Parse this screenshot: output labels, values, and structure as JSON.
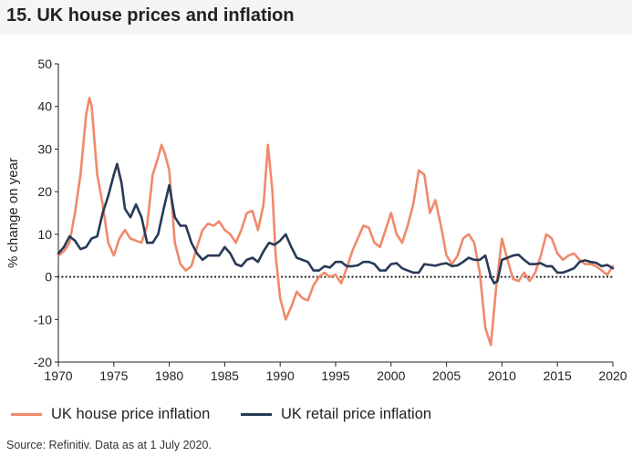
{
  "page": {
    "title": "15. UK house prices and inflation"
  },
  "legend": {
    "house": "UK house price inflation",
    "retail": "UK retail price inflation"
  },
  "source": "Source: Refinitiv. Data as at 1 July 2020.",
  "colors": {
    "house": "#f0896b",
    "retail": "#273a56",
    "zero": "#222222",
    "axis": "#222222"
  },
  "chart_data": {
    "type": "line",
    "title": "15. UK house prices and inflation",
    "xlabel": "",
    "ylabel": "% change on year",
    "xlim": [
      1970,
      2020
    ],
    "ylim": [
      -20,
      50
    ],
    "xticks": [
      1970,
      1975,
      1980,
      1985,
      1990,
      1995,
      2000,
      2005,
      2010,
      2015,
      2020
    ],
    "yticks": [
      -20,
      -10,
      0,
      10,
      20,
      30,
      40,
      50
    ],
    "grid": false,
    "zero_line": "dotted",
    "series": [
      {
        "name": "UK house price inflation",
        "points": [
          [
            1970.0,
            5
          ],
          [
            1970.5,
            6
          ],
          [
            1971.0,
            8
          ],
          [
            1971.5,
            15
          ],
          [
            1972.0,
            24
          ],
          [
            1972.5,
            38
          ],
          [
            1972.8,
            42
          ],
          [
            1973.0,
            40
          ],
          [
            1973.5,
            24
          ],
          [
            1974.0,
            17
          ],
          [
            1974.5,
            8
          ],
          [
            1975.0,
            5
          ],
          [
            1975.5,
            9
          ],
          [
            1976.0,
            11
          ],
          [
            1976.5,
            9
          ],
          [
            1977.0,
            8.5
          ],
          [
            1977.5,
            8
          ],
          [
            1978.0,
            12
          ],
          [
            1978.5,
            24
          ],
          [
            1979.0,
            28
          ],
          [
            1979.3,
            31
          ],
          [
            1979.6,
            29
          ],
          [
            1980.0,
            25
          ],
          [
            1980.5,
            8
          ],
          [
            1981.0,
            3
          ],
          [
            1981.5,
            1.5
          ],
          [
            1982.0,
            2.5
          ],
          [
            1982.5,
            7
          ],
          [
            1983.0,
            11
          ],
          [
            1983.5,
            12.5
          ],
          [
            1984.0,
            12
          ],
          [
            1984.5,
            13
          ],
          [
            1985.0,
            11
          ],
          [
            1985.5,
            10
          ],
          [
            1986.0,
            8
          ],
          [
            1986.5,
            11
          ],
          [
            1987.0,
            15
          ],
          [
            1987.5,
            15.5
          ],
          [
            1988.0,
            11
          ],
          [
            1988.5,
            17
          ],
          [
            1988.9,
            31
          ],
          [
            1989.3,
            20
          ],
          [
            1989.6,
            5
          ],
          [
            1990.0,
            -5
          ],
          [
            1990.5,
            -10
          ],
          [
            1991.0,
            -7
          ],
          [
            1991.5,
            -3.5
          ],
          [
            1992.0,
            -5
          ],
          [
            1992.5,
            -5.5
          ],
          [
            1993.0,
            -2
          ],
          [
            1993.5,
            0
          ],
          [
            1994.0,
            1
          ],
          [
            1994.5,
            0
          ],
          [
            1995.0,
            0.5
          ],
          [
            1995.5,
            -1.5
          ],
          [
            1996.0,
            2
          ],
          [
            1996.5,
            6
          ],
          [
            1997.0,
            9
          ],
          [
            1997.5,
            12
          ],
          [
            1998.0,
            11.5
          ],
          [
            1998.5,
            8
          ],
          [
            1999.0,
            7
          ],
          [
            1999.5,
            11
          ],
          [
            2000.0,
            15
          ],
          [
            2000.5,
            10
          ],
          [
            2001.0,
            8
          ],
          [
            2001.5,
            12
          ],
          [
            2002.0,
            17
          ],
          [
            2002.5,
            25
          ],
          [
            2003.0,
            24
          ],
          [
            2003.5,
            15
          ],
          [
            2004.0,
            18
          ],
          [
            2004.5,
            12
          ],
          [
            2005.0,
            5
          ],
          [
            2005.5,
            3
          ],
          [
            2006.0,
            5
          ],
          [
            2006.5,
            9
          ],
          [
            2007.0,
            10
          ],
          [
            2007.5,
            8
          ],
          [
            2008.0,
            1
          ],
          [
            2008.5,
            -12
          ],
          [
            2009.0,
            -16
          ],
          [
            2009.5,
            -2
          ],
          [
            2010.0,
            9
          ],
          [
            2010.5,
            4
          ],
          [
            2011.0,
            -0.5
          ],
          [
            2011.5,
            -1
          ],
          [
            2012.0,
            1
          ],
          [
            2012.5,
            -1
          ],
          [
            2013.0,
            1
          ],
          [
            2013.5,
            5
          ],
          [
            2014.0,
            10
          ],
          [
            2014.5,
            9
          ],
          [
            2015.0,
            5.5
          ],
          [
            2015.5,
            4
          ],
          [
            2016.0,
            5
          ],
          [
            2016.5,
            5.5
          ],
          [
            2017.0,
            4
          ],
          [
            2017.5,
            3
          ],
          [
            2018.0,
            3
          ],
          [
            2018.5,
            2.5
          ],
          [
            2019.0,
            1.5
          ],
          [
            2019.5,
            0.5
          ],
          [
            2020.0,
            2.5
          ]
        ]
      },
      {
        "name": "UK retail price inflation",
        "points": [
          [
            1970.0,
            5.5
          ],
          [
            1970.5,
            7
          ],
          [
            1971.0,
            9.5
          ],
          [
            1971.5,
            8.5
          ],
          [
            1972.0,
            6.5
          ],
          [
            1972.5,
            7
          ],
          [
            1973.0,
            9
          ],
          [
            1973.5,
            9.5
          ],
          [
            1974.0,
            15
          ],
          [
            1974.5,
            19
          ],
          [
            1975.0,
            24
          ],
          [
            1975.3,
            26.5
          ],
          [
            1975.7,
            22
          ],
          [
            1976.0,
            16
          ],
          [
            1976.5,
            14
          ],
          [
            1977.0,
            17
          ],
          [
            1977.5,
            14
          ],
          [
            1978.0,
            8
          ],
          [
            1978.5,
            8
          ],
          [
            1979.0,
            10
          ],
          [
            1979.5,
            16
          ],
          [
            1980.0,
            21.5
          ],
          [
            1980.5,
            14
          ],
          [
            1981.0,
            12
          ],
          [
            1981.5,
            12
          ],
          [
            1982.0,
            8
          ],
          [
            1982.5,
            5.5
          ],
          [
            1983.0,
            4
          ],
          [
            1983.5,
            5
          ],
          [
            1984.0,
            5
          ],
          [
            1984.5,
            5
          ],
          [
            1985.0,
            7
          ],
          [
            1985.5,
            5.5
          ],
          [
            1986.0,
            3
          ],
          [
            1986.5,
            2.5
          ],
          [
            1987.0,
            4
          ],
          [
            1987.5,
            4.5
          ],
          [
            1988.0,
            3.5
          ],
          [
            1988.5,
            6
          ],
          [
            1989.0,
            8
          ],
          [
            1989.5,
            7.5
          ],
          [
            1990.0,
            8.5
          ],
          [
            1990.5,
            10
          ],
          [
            1991.0,
            7
          ],
          [
            1991.5,
            4.5
          ],
          [
            1992.0,
            4
          ],
          [
            1992.5,
            3.5
          ],
          [
            1993.0,
            1.5
          ],
          [
            1993.5,
            1.5
          ],
          [
            1994.0,
            2.5
          ],
          [
            1994.5,
            2.2
          ],
          [
            1995.0,
            3.5
          ],
          [
            1995.5,
            3.5
          ],
          [
            1996.0,
            2.5
          ],
          [
            1996.5,
            2.5
          ],
          [
            1997.0,
            2.7
          ],
          [
            1997.5,
            3.5
          ],
          [
            1998.0,
            3.5
          ],
          [
            1998.5,
            3
          ],
          [
            1999.0,
            1.5
          ],
          [
            1999.5,
            1.5
          ],
          [
            2000.0,
            3
          ],
          [
            2000.5,
            3.2
          ],
          [
            2001.0,
            2
          ],
          [
            2001.5,
            1.5
          ],
          [
            2002.0,
            1
          ],
          [
            2002.5,
            1
          ],
          [
            2003.0,
            3
          ],
          [
            2003.5,
            2.8
          ],
          [
            2004.0,
            2.6
          ],
          [
            2004.5,
            3
          ],
          [
            2005.0,
            3.2
          ],
          [
            2005.5,
            2.5
          ],
          [
            2006.0,
            2.7
          ],
          [
            2006.5,
            3.5
          ],
          [
            2007.0,
            4.5
          ],
          [
            2007.5,
            4
          ],
          [
            2008.0,
            4
          ],
          [
            2008.5,
            5
          ],
          [
            2009.0,
            0
          ],
          [
            2009.3,
            -1.5
          ],
          [
            2009.6,
            -1
          ],
          [
            2010.0,
            4
          ],
          [
            2010.5,
            4.5
          ],
          [
            2011.0,
            5
          ],
          [
            2011.5,
            5.2
          ],
          [
            2012.0,
            4
          ],
          [
            2012.5,
            3
          ],
          [
            2013.0,
            3
          ],
          [
            2013.5,
            3.2
          ],
          [
            2014.0,
            2.5
          ],
          [
            2014.5,
            2.5
          ],
          [
            2015.0,
            1
          ],
          [
            2015.5,
            1
          ],
          [
            2016.0,
            1.5
          ],
          [
            2016.5,
            2
          ],
          [
            2017.0,
            3.5
          ],
          [
            2017.5,
            3.9
          ],
          [
            2018.0,
            3.5
          ],
          [
            2018.5,
            3.3
          ],
          [
            2019.0,
            2.5
          ],
          [
            2019.5,
            2.8
          ],
          [
            2020.0,
            2
          ]
        ]
      }
    ]
  }
}
